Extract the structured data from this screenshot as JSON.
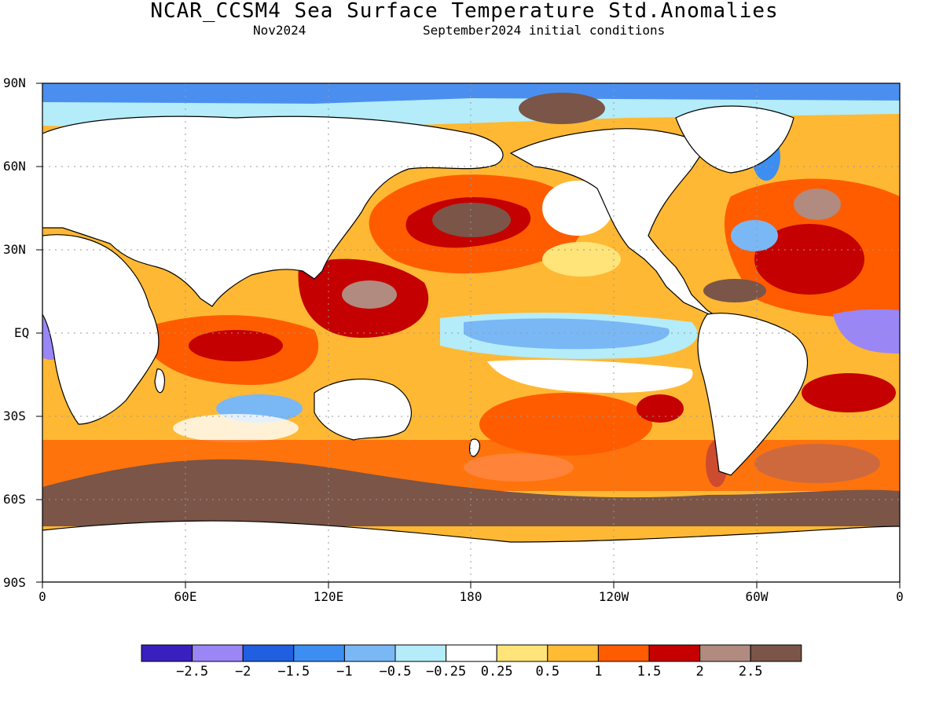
{
  "title": "NCAR_CCSM4 Sea Surface Temperature Std.Anomalies",
  "subtitle_left": "Nov2024",
  "subtitle_right": "September2024 initial conditions",
  "lat_labels": [
    "90N",
    "60N",
    "30N",
    "EQ",
    "30S",
    "60S",
    "90S"
  ],
  "lon_labels": [
    "0",
    "60E",
    "120E",
    "180",
    "120W",
    "60W",
    "0"
  ],
  "colorbar": {
    "colors": [
      "#3a1fbf",
      "#9a86f5",
      "#1f5fe0",
      "#3c8ef2",
      "#7ab7f5",
      "#b4ecf9",
      "#ffffff",
      "#ffe47a",
      "#ffbb33",
      "#ff5c00",
      "#c40000",
      "#b18a80",
      "#7a5548"
    ],
    "labels": [
      "−2.5",
      "−2",
      "−1.5",
      "−1",
      "−0.5",
      "−0.25",
      "0.25",
      "0.5",
      "1",
      "1.5",
      "2",
      "2.5"
    ]
  }
}
